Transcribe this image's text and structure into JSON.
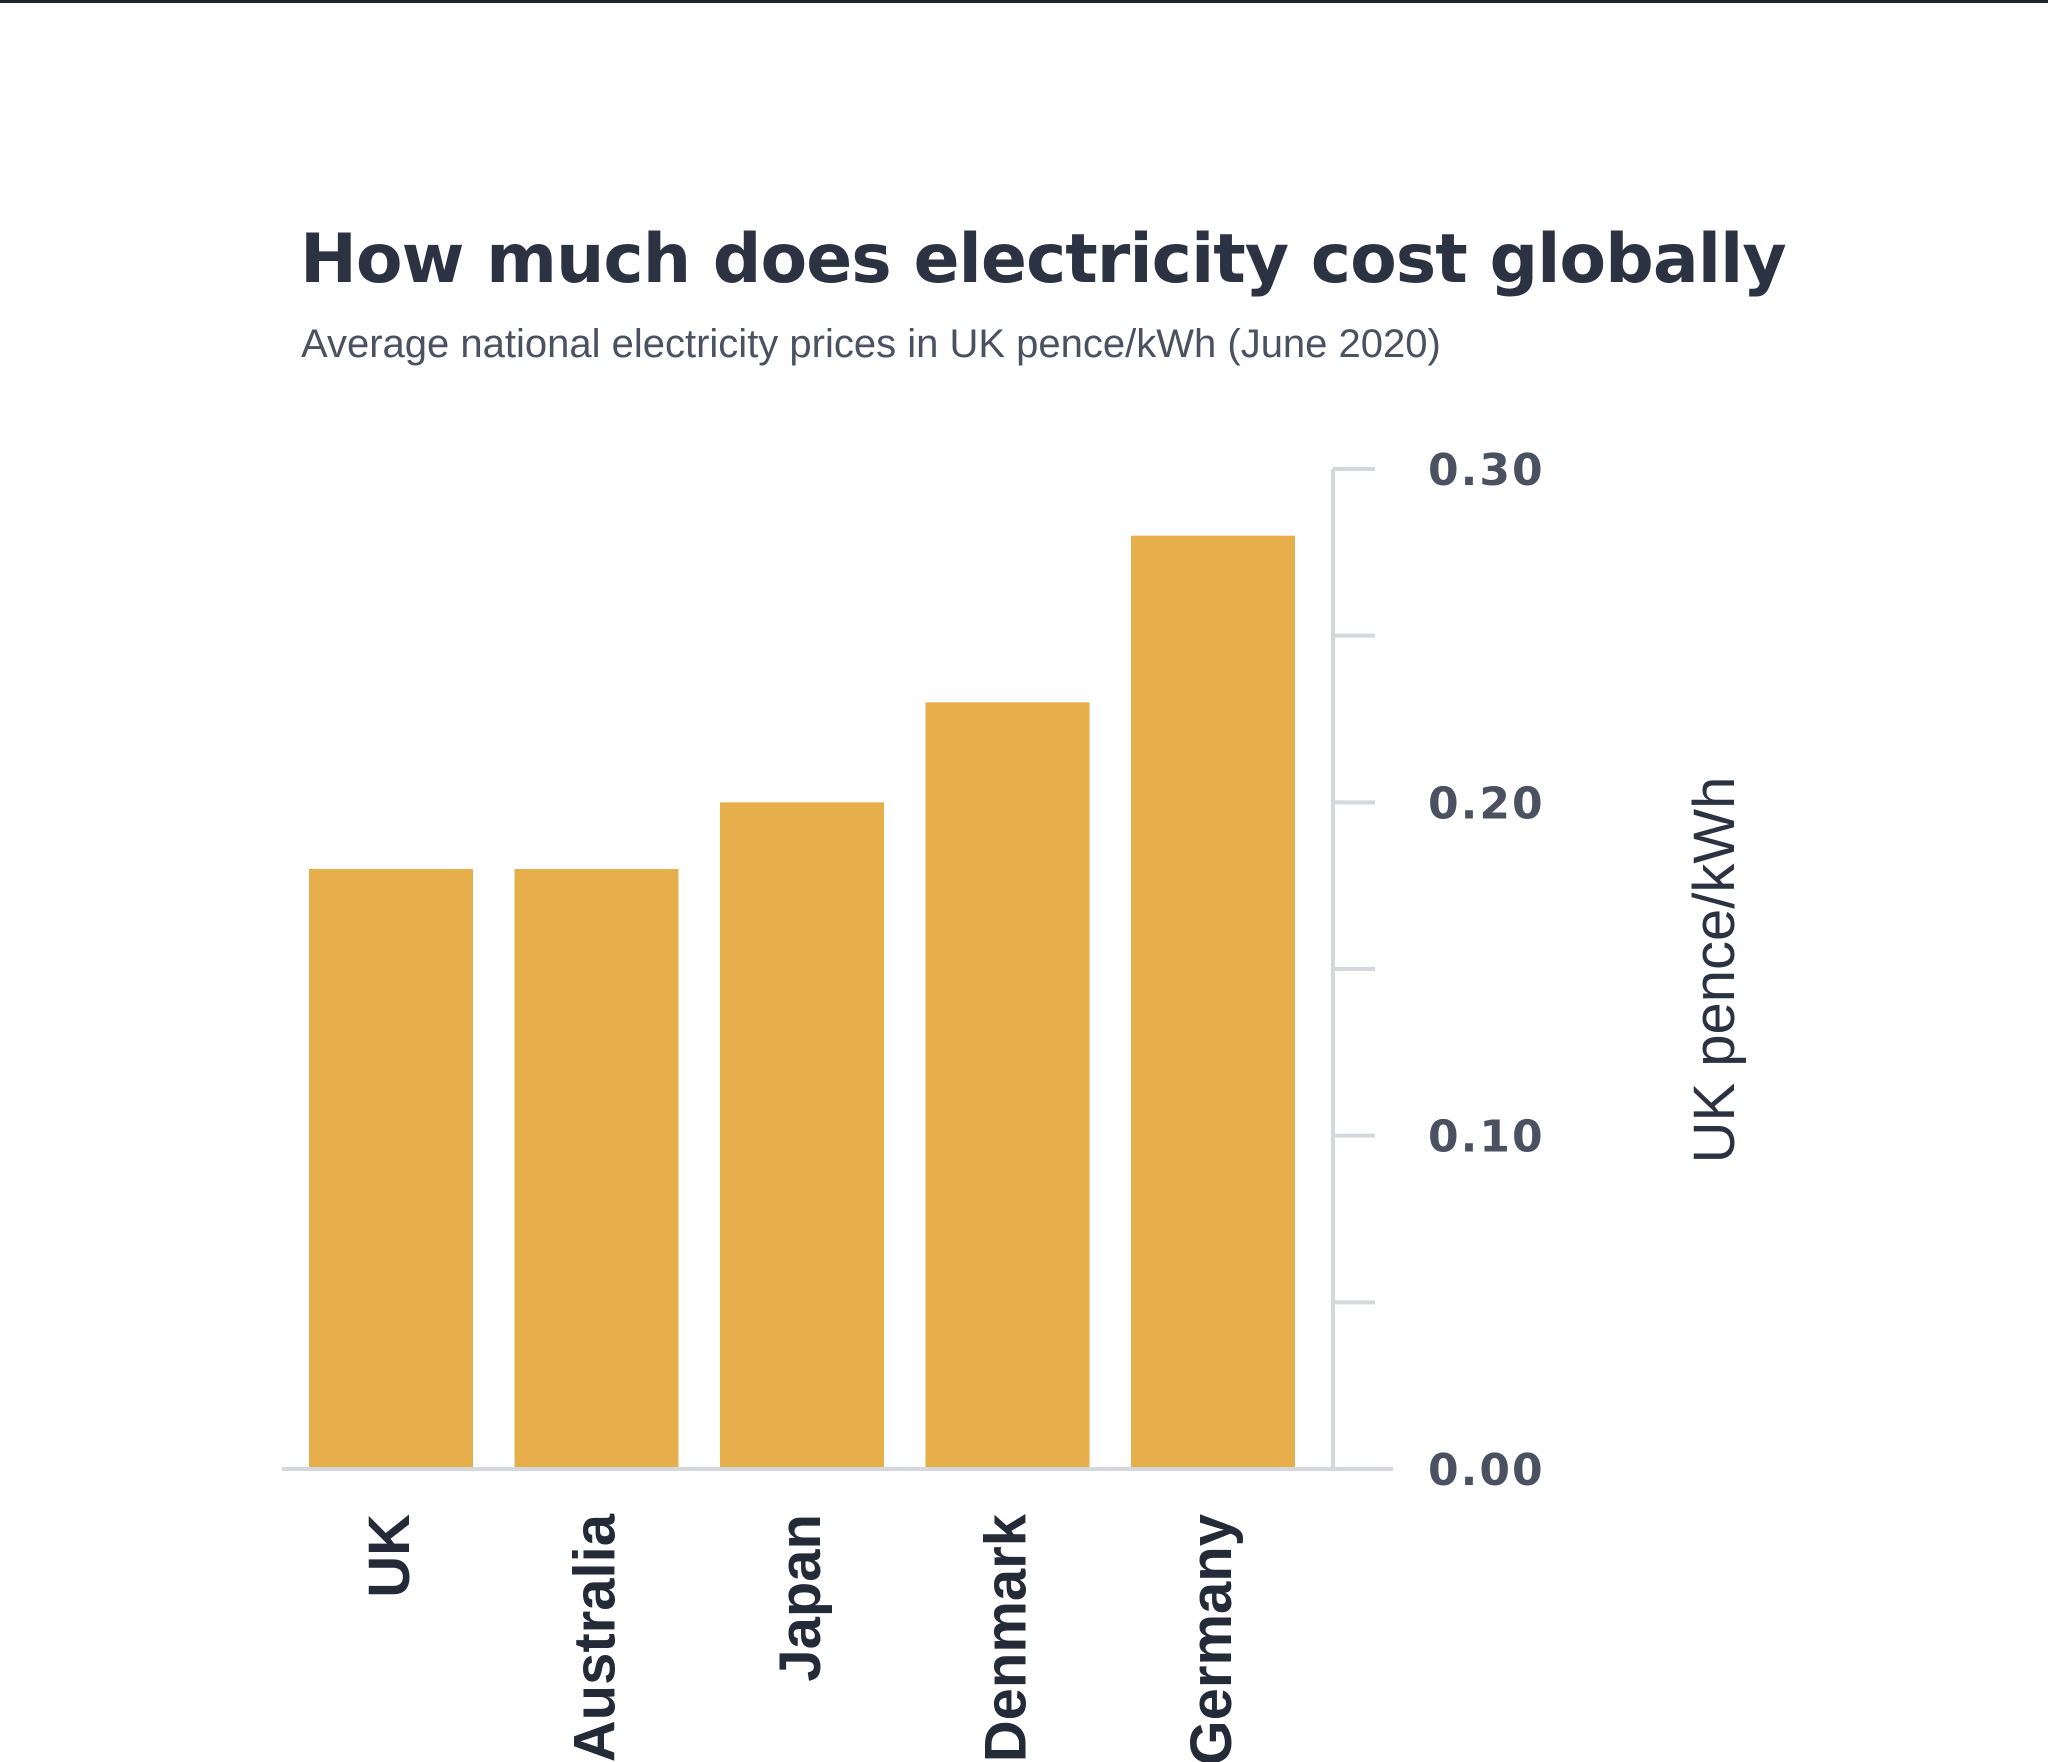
{
  "colors": {
    "bar": "#E6AF4C",
    "axis": "#D4D7DC",
    "text": "#2B3242"
  },
  "chart_data": {
    "type": "bar",
    "title": "How much does electricity cost globally",
    "subtitle": "Average national electricity prices in UK pence/kWh (June 2020)",
    "categories": [
      "UK",
      "Australia",
      "Japan",
      "Denmark",
      "Germany"
    ],
    "values": [
      0.18,
      0.18,
      0.2,
      0.23,
      0.28
    ],
    "ylabel": "UK pence/kWh",
    "xlabel": "",
    "ylim": [
      0,
      0.3
    ],
    "yticks": [
      0,
      0.05,
      0.1,
      0.15,
      0.2,
      0.25,
      0.3
    ],
    "ytick_labels": [
      "0.00",
      "",
      "0.10",
      "",
      "0.20",
      "",
      "0.30"
    ],
    "y_axis_side": "right",
    "grid": false,
    "legend": "none"
  }
}
